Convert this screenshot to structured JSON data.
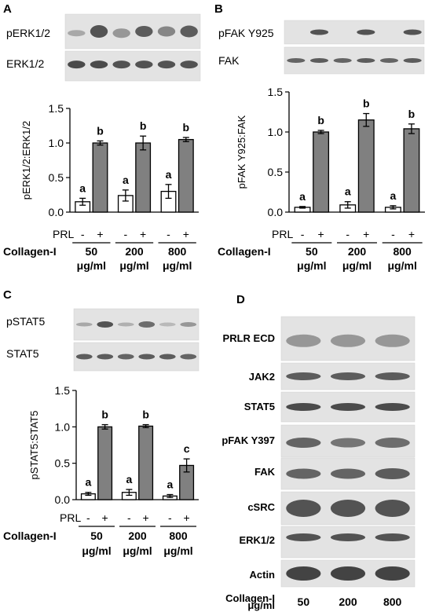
{
  "colors": {
    "control_bar": "#ffffff",
    "prl_bar": "#808080",
    "blot_bg": "#e3e3e3",
    "band": "#3a3a3a",
    "axis": "#000000"
  },
  "panels": [
    {
      "letter": "A",
      "blot_labels": [
        "pERK1/2",
        "ERK1/2"
      ],
      "prl_label": "PRL",
      "prl_signs": [
        "-",
        "+"
      ],
      "collagen_label": "Collagen-I",
      "concentrations": [
        "50",
        "200",
        "800"
      ],
      "unit": "μg/ml",
      "chart_data": {
        "type": "bar",
        "ylabel": "pERK1/2:ERK1/2",
        "ylim": [
          0,
          1.5
        ],
        "yticks": [
          "0.0",
          "0.5",
          "1.0",
          "1.5"
        ],
        "categories": [
          "50 -",
          "50 +",
          "200 -",
          "200 +",
          "800 -",
          "800 +"
        ],
        "values": [
          0.15,
          1.0,
          0.24,
          1.0,
          0.3,
          1.05
        ],
        "errors": [
          0.05,
          0.03,
          0.08,
          0.1,
          0.1,
          0.03
        ],
        "letters": [
          "a",
          "b",
          "a",
          "b",
          "a",
          "b"
        ]
      }
    },
    {
      "letter": "B",
      "blot_labels": [
        "pFAK Y925",
        "FAK"
      ],
      "prl_label": "PRL",
      "prl_signs": [
        "-",
        "+"
      ],
      "collagen_label": "Collagen-I",
      "concentrations": [
        "50",
        "200",
        "800"
      ],
      "unit": "μg/ml",
      "chart_data": {
        "type": "bar",
        "ylabel": "pFAK Y925:FAK",
        "ylim": [
          0,
          1.5
        ],
        "yticks": [
          "0.0",
          "0.5",
          "1.0",
          "1.5"
        ],
        "categories": [
          "50 -",
          "50 +",
          "200 -",
          "200 +",
          "800 -",
          "800 +"
        ],
        "values": [
          0.06,
          1.0,
          0.09,
          1.15,
          0.06,
          1.04
        ],
        "errors": [
          0.01,
          0.02,
          0.04,
          0.08,
          0.02,
          0.06
        ],
        "letters": [
          "a",
          "b",
          "a",
          "b",
          "a",
          "b"
        ]
      }
    },
    {
      "letter": "C",
      "blot_labels": [
        "pSTAT5",
        "STAT5"
      ],
      "prl_label": "PRL",
      "prl_signs": [
        "-",
        "+"
      ],
      "collagen_label": "Collagen-I",
      "concentrations": [
        "50",
        "200",
        "800"
      ],
      "unit": "μg/ml",
      "chart_data": {
        "type": "bar",
        "ylabel": "pSTAT5:STAT5",
        "ylim": [
          0,
          1.5
        ],
        "yticks": [
          "0.0",
          "0.5",
          "1.0",
          "1.5"
        ],
        "categories": [
          "50 -",
          "50 +",
          "200 -",
          "200 +",
          "800 -",
          "800 +"
        ],
        "values": [
          0.08,
          1.0,
          0.1,
          1.01,
          0.05,
          0.47
        ],
        "errors": [
          0.02,
          0.03,
          0.04,
          0.02,
          0.02,
          0.09
        ],
        "letters": [
          "a",
          "b",
          "a",
          "b",
          "a",
          "c"
        ]
      }
    }
  ],
  "panel_d": {
    "letter": "D",
    "blot_labels": [
      "PRLR ECD",
      "JAK2",
      "STAT5",
      "pFAK Y397",
      "FAK",
      "cSRC",
      "ERK1/2",
      "Actin"
    ],
    "collagen_label": "Collagen-I",
    "unit": "μg/ml",
    "concentrations": [
      "50",
      "200",
      "800"
    ]
  }
}
